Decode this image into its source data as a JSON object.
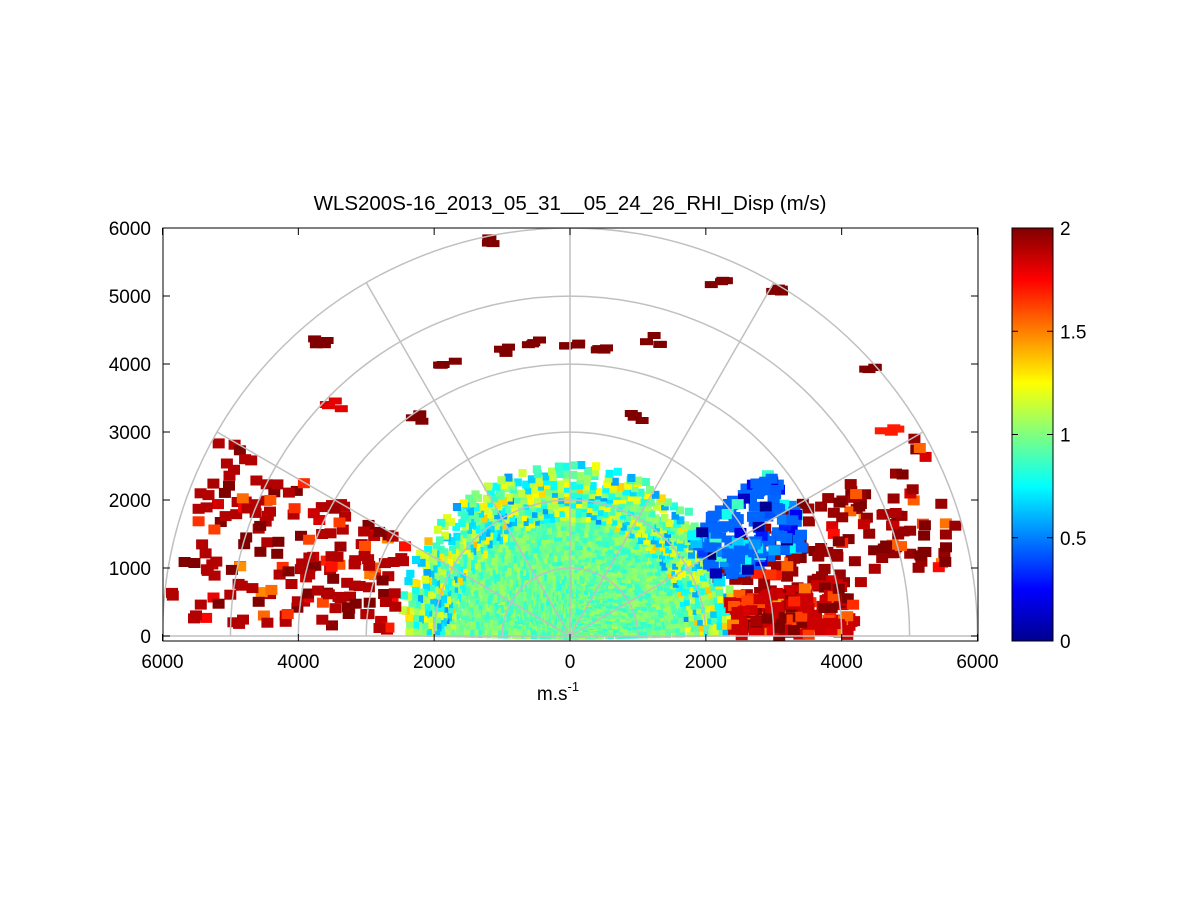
{
  "chart_data": {
    "type": "heatmap",
    "subtype": "polar-rhi-scan",
    "title": "WLS200S-16_2013_05_31__05_24_26_RHI_Disp (m/s)",
    "xlabel": "m.s",
    "xlabel_superscript": "-1",
    "ylabel": "",
    "xlim": [
      -6000,
      6000
    ],
    "ylim": [
      0,
      6000
    ],
    "x_ticks": [
      -6000,
      -4000,
      -2000,
      0,
      2000,
      4000,
      6000
    ],
    "x_tick_labels": [
      "6000",
      "4000",
      "2000",
      "0",
      "2000",
      "4000",
      "6000"
    ],
    "y_ticks": [
      0,
      1000,
      2000,
      3000,
      4000,
      5000,
      6000
    ],
    "y_tick_labels": [
      "0",
      "1000",
      "2000",
      "3000",
      "4000",
      "5000",
      "6000"
    ],
    "polar_grid": {
      "range_rings": [
        1000,
        2000,
        3000,
        4000,
        5000,
        6000
      ],
      "angle_spokes_deg": [
        0,
        30,
        60,
        90,
        120,
        150,
        180
      ]
    },
    "colorbar": {
      "min": 0,
      "max": 2,
      "ticks": [
        0,
        0.5,
        1,
        1.5,
        2
      ],
      "tick_labels": [
        "0",
        "0.5",
        "1",
        "1.5",
        "2"
      ],
      "colormap": "jet"
    },
    "field": {
      "dense_region_max_range_m": 2550,
      "dense_region_mean_value": 0.95,
      "dense_region_elevation_deg": [
        0,
        180
      ],
      "edge_patches": [
        {
          "elevation_deg": [
            10,
            30
          ],
          "range_m": [
            2400,
            5900
          ],
          "mean_value": 1.95
        },
        {
          "elevation_deg": [
            150,
            178
          ],
          "range_m": [
            2600,
            5900
          ],
          "mean_value": 1.9
        },
        {
          "elevation_deg": [
            20,
            40
          ],
          "range_m": [
            2300,
            3800
          ],
          "mean_value": 0.45
        },
        {
          "elevation_deg": [
            0,
            12
          ],
          "range_m": [
            2400,
            4200
          ],
          "mean_value": 1.85
        }
      ],
      "sparse_aloft_cells": [
        {
          "x": -1000,
          "y": 4200,
          "value": 2
        },
        {
          "x": -500,
          "y": 4300,
          "value": 2
        },
        {
          "x": 0,
          "y": 4300,
          "value": 2
        },
        {
          "x": 500,
          "y": 4250,
          "value": 2
        },
        {
          "x": 1200,
          "y": 4350,
          "value": 2
        },
        {
          "x": -1100,
          "y": 5800,
          "value": 2
        },
        {
          "x": 2200,
          "y": 5200,
          "value": 2
        },
        {
          "x": 3100,
          "y": 5050,
          "value": 2
        },
        {
          "x": 4400,
          "y": 3900,
          "value": 2
        },
        {
          "x": -3700,
          "y": 4300,
          "value": 2
        },
        {
          "x": -2200,
          "y": 3200,
          "value": 2
        },
        {
          "x": -3500,
          "y": 3400,
          "value": 1.8
        },
        {
          "x": 1000,
          "y": 3200,
          "value": 2
        },
        {
          "x": -1800,
          "y": 4000,
          "value": 2
        },
        {
          "x": 4700,
          "y": 3050,
          "value": 1.7
        }
      ]
    }
  }
}
